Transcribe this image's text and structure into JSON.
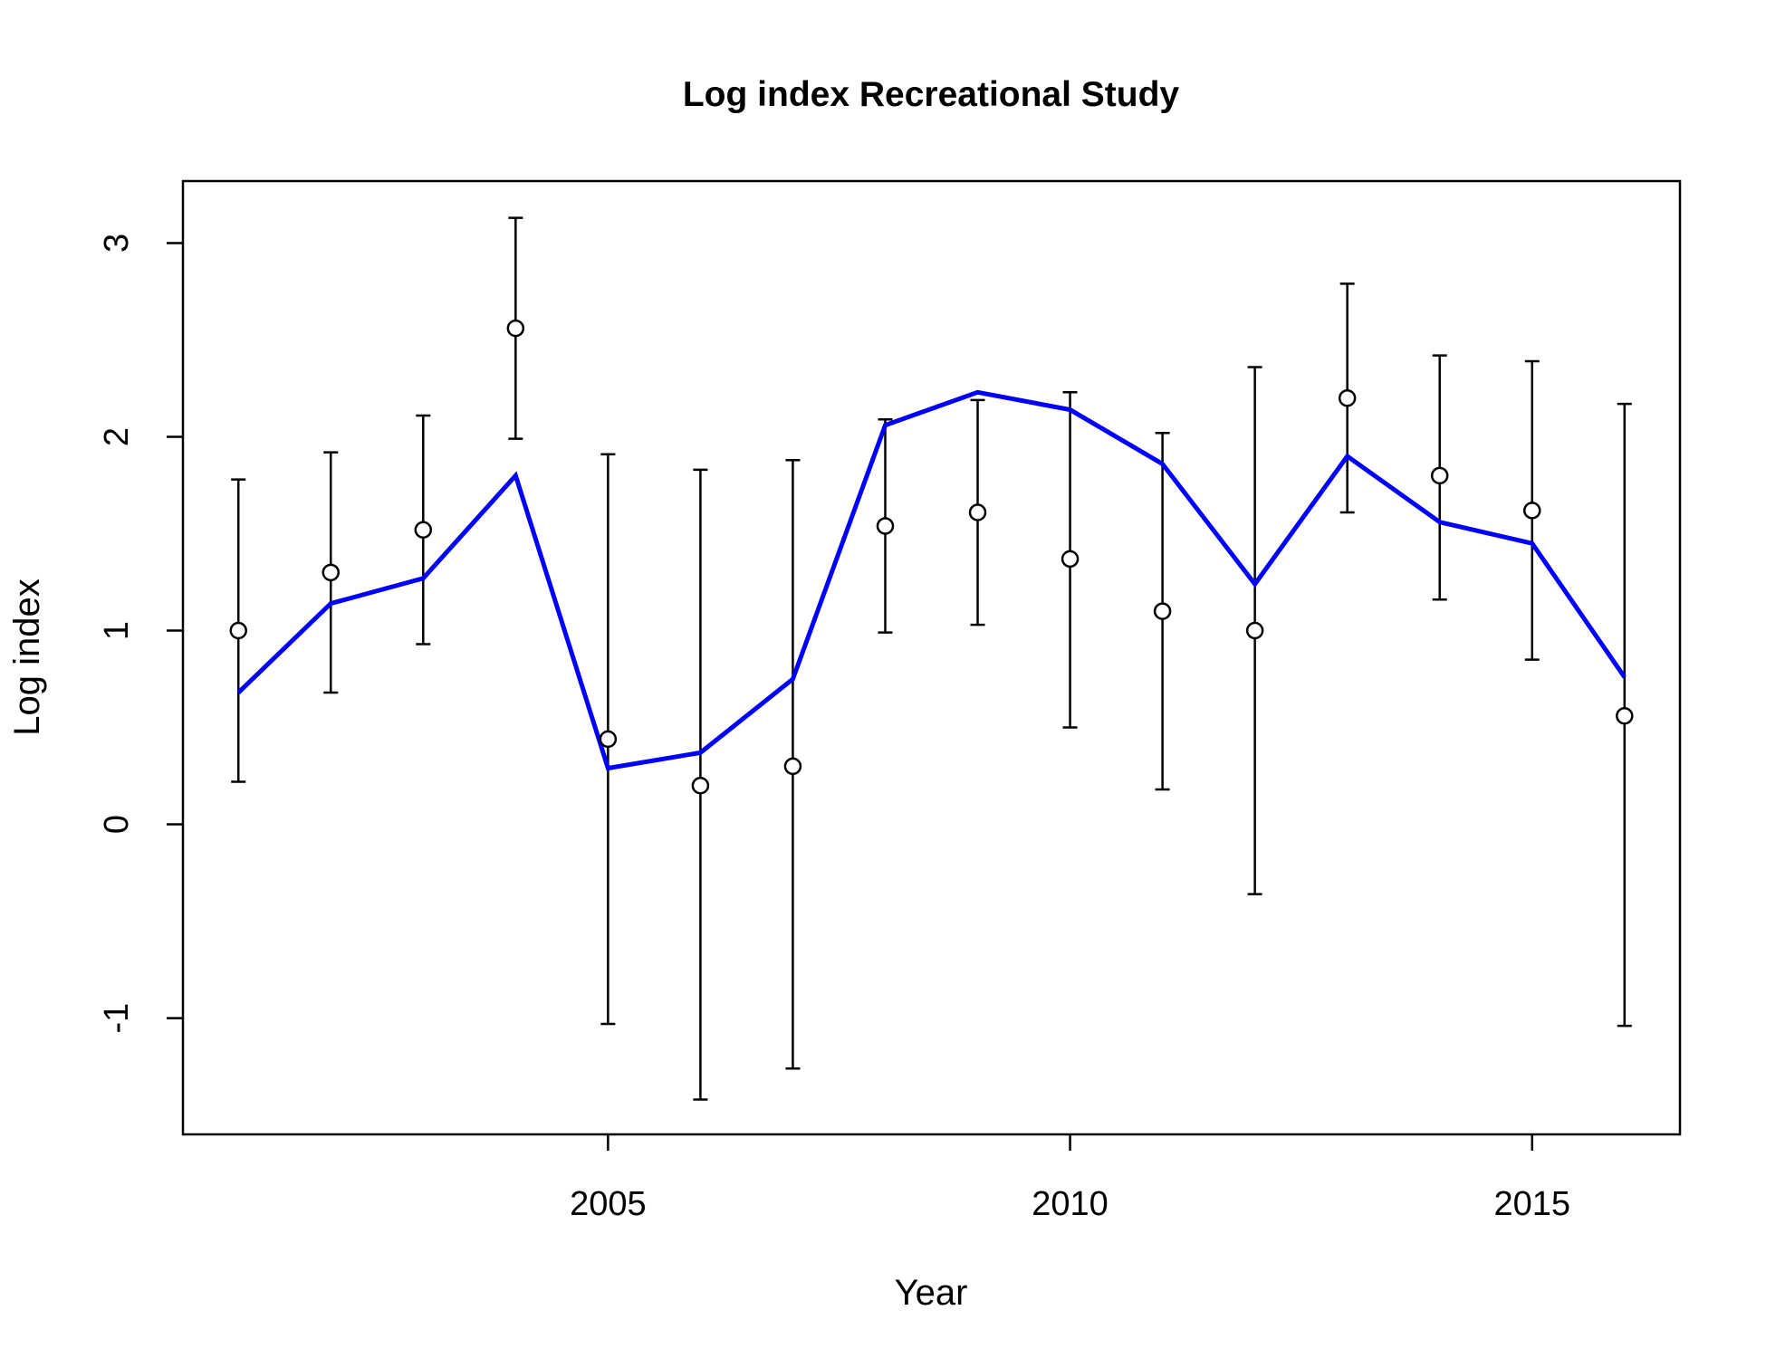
{
  "chart_data": {
    "type": "line",
    "title": "Log index Recreational Study",
    "xlabel": "Year",
    "ylabel": "Log index",
    "xlim": [
      2000.4,
      2016.6
    ],
    "ylim": [
      -1.6,
      3.32
    ],
    "x_ticks": [
      2005,
      2010,
      2015
    ],
    "x_tick_labels": [
      "2005",
      "2010",
      "2015"
    ],
    "y_ticks": [
      -1,
      0,
      1,
      2,
      3
    ],
    "y_tick_labels": [
      "-1",
      "0",
      "1",
      "2",
      "3"
    ],
    "grid": false,
    "legend": "none",
    "x": [
      2001,
      2002,
      2003,
      2004,
      2005,
      2006,
      2007,
      2008,
      2009,
      2010,
      2011,
      2012,
      2013,
      2014,
      2015,
      2016
    ],
    "observed": {
      "marker": "open-circle",
      "color": "#000000",
      "values": [
        1.0,
        1.3,
        1.52,
        2.56,
        0.44,
        0.2,
        0.3,
        1.54,
        1.61,
        1.37,
        1.1,
        1.0,
        2.2,
        1.8,
        1.62,
        0.56
      ],
      "lower": [
        0.22,
        0.68,
        0.93,
        1.99,
        -1.03,
        -1.42,
        -1.26,
        0.99,
        1.03,
        0.5,
        0.18,
        -0.36,
        1.61,
        1.16,
        0.85,
        -1.04
      ],
      "upper": [
        1.78,
        1.92,
        2.11,
        3.13,
        1.91,
        1.83,
        1.88,
        2.09,
        2.19,
        2.23,
        2.02,
        2.36,
        2.79,
        2.42,
        2.39,
        2.17
      ]
    },
    "fitted": {
      "color": "#0000ff",
      "values": [
        0.68,
        1.14,
        1.27,
        1.8,
        0.29,
        0.37,
        0.75,
        2.06,
        2.23,
        2.14,
        1.86,
        1.24,
        1.9,
        1.56,
        1.45,
        0.76
      ]
    }
  }
}
